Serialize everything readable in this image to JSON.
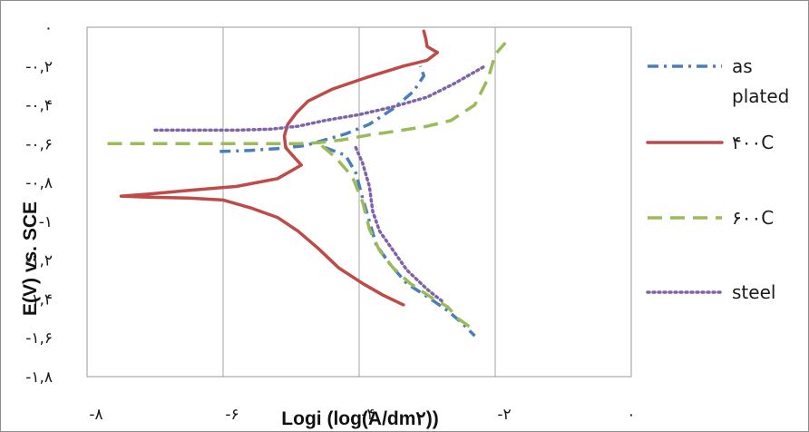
{
  "chart_data": {
    "type": "line",
    "title": "",
    "xlabel": "Logi (log(A/dm۲))",
    "ylabel": "E(V) vs. SCE",
    "xlim": [
      -8,
      0
    ],
    "ylim": [
      -1.8,
      0
    ],
    "grid": "vertical",
    "legend_position": "right",
    "x_tick_labels": [
      "-۸",
      "-۶",
      "-۴",
      "-۲",
      "۰"
    ],
    "x_tick_values": [
      -8,
      -6,
      -4,
      -2,
      0
    ],
    "y_tick_labels": [
      "۰",
      "-۰,۲",
      "-۰,۴",
      "-۰,۶",
      "-۰,۸",
      "-۱",
      "-۱,۲",
      "-۱,۴",
      "-۱,۶",
      "-۱,۸"
    ],
    "y_tick_values": [
      0,
      -0.2,
      -0.4,
      -0.6,
      -0.8,
      -1.0,
      -1.2,
      -1.4,
      -1.6,
      -1.8
    ],
    "series": [
      {
        "name": "as plated",
        "color": "#4a7ebb",
        "dash": "dashdot",
        "points": [
          [
            -6.05,
            -0.64
          ],
          [
            -5.6,
            -0.635
          ],
          [
            -5.2,
            -0.625
          ],
          [
            -4.8,
            -0.61
          ],
          [
            -4.5,
            -0.58
          ],
          [
            -4.2,
            -0.55
          ],
          [
            -3.85,
            -0.5
          ],
          [
            -3.5,
            -0.42
          ],
          [
            -3.2,
            -0.33
          ],
          [
            -3.05,
            -0.25
          ],
          [
            -3.1,
            -0.2
          ],
          [
            -4.5,
            -0.62
          ],
          [
            -4.2,
            -0.66
          ],
          [
            -4.05,
            -0.75
          ],
          [
            -3.95,
            -0.88
          ],
          [
            -3.85,
            -1.0
          ],
          [
            -3.75,
            -1.12
          ],
          [
            -3.55,
            -1.22
          ],
          [
            -3.3,
            -1.32
          ],
          [
            -2.95,
            -1.4
          ],
          [
            -2.7,
            -1.46
          ],
          [
            -2.5,
            -1.52
          ],
          [
            -2.3,
            -1.59
          ]
        ]
      },
      {
        "name": "۴۰۰C",
        "color": "#be4b48",
        "dash": "solid",
        "points": [
          [
            -3.05,
            -0.02
          ],
          [
            -3.02,
            -0.06
          ],
          [
            -3.0,
            -0.1
          ],
          [
            -2.85,
            -0.13
          ],
          [
            -3.0,
            -0.17
          ],
          [
            -3.35,
            -0.2
          ],
          [
            -3.9,
            -0.26
          ],
          [
            -4.4,
            -0.32
          ],
          [
            -4.75,
            -0.38
          ],
          [
            -4.92,
            -0.44
          ],
          [
            -5.05,
            -0.5
          ],
          [
            -5.1,
            -0.56
          ],
          [
            -5.08,
            -0.62
          ],
          [
            -4.98,
            -0.66
          ],
          [
            -4.85,
            -0.71
          ],
          [
            -5.2,
            -0.78
          ],
          [
            -5.8,
            -0.82
          ],
          [
            -6.5,
            -0.84
          ],
          [
            -7.1,
            -0.86
          ],
          [
            -7.5,
            -0.87
          ],
          [
            -7.1,
            -0.875
          ],
          [
            -6.5,
            -0.88
          ],
          [
            -6.0,
            -0.89
          ],
          [
            -5.6,
            -0.93
          ],
          [
            -5.2,
            -0.98
          ],
          [
            -4.9,
            -1.05
          ],
          [
            -4.6,
            -1.14
          ],
          [
            -4.3,
            -1.24
          ],
          [
            -3.95,
            -1.32
          ],
          [
            -3.65,
            -1.38
          ],
          [
            -3.35,
            -1.43
          ]
        ]
      },
      {
        "name": "۶۰۰C",
        "color": "#9bbb59",
        "dash": "dash",
        "points": [
          [
            -7.7,
            -0.6
          ],
          [
            -7.2,
            -0.6
          ],
          [
            -6.5,
            -0.6
          ],
          [
            -5.9,
            -0.6
          ],
          [
            -5.3,
            -0.6
          ],
          [
            -4.9,
            -0.6
          ],
          [
            -4.6,
            -0.595
          ],
          [
            -4.25,
            -0.58
          ],
          [
            -3.85,
            -0.555
          ],
          [
            -3.45,
            -0.535
          ],
          [
            -3.0,
            -0.51
          ],
          [
            -2.65,
            -0.48
          ],
          [
            -2.3,
            -0.4
          ],
          [
            -2.1,
            -0.26
          ],
          [
            -2.0,
            -0.14
          ],
          [
            -1.85,
            -0.08
          ],
          [
            -4.55,
            -0.61
          ],
          [
            -4.35,
            -0.67
          ],
          [
            -4.1,
            -0.77
          ],
          [
            -3.95,
            -0.9
          ],
          [
            -3.85,
            -1.04
          ],
          [
            -3.7,
            -1.15
          ],
          [
            -3.5,
            -1.24
          ],
          [
            -3.25,
            -1.32
          ],
          [
            -2.95,
            -1.39
          ],
          [
            -2.7,
            -1.44
          ],
          [
            -2.55,
            -1.5
          ],
          [
            -2.35,
            -1.55
          ]
        ]
      },
      {
        "name": "steel",
        "color": "#7f63a8",
        "dash": "dot",
        "points": [
          [
            -7.0,
            -0.53
          ],
          [
            -6.4,
            -0.53
          ],
          [
            -5.8,
            -0.53
          ],
          [
            -5.3,
            -0.525
          ],
          [
            -4.9,
            -0.51
          ],
          [
            -4.5,
            -0.48
          ],
          [
            -4.0,
            -0.45
          ],
          [
            -3.5,
            -0.41
          ],
          [
            -3.0,
            -0.36
          ],
          [
            -2.6,
            -0.29
          ],
          [
            -2.15,
            -0.2
          ],
          [
            -4.05,
            -0.62
          ],
          [
            -3.95,
            -0.7
          ],
          [
            -3.85,
            -0.82
          ],
          [
            -3.8,
            -0.95
          ],
          [
            -3.7,
            -1.05
          ],
          [
            -3.5,
            -1.15
          ],
          [
            -3.3,
            -1.25
          ],
          [
            -3.0,
            -1.35
          ],
          [
            -2.75,
            -1.42
          ]
        ]
      }
    ]
  }
}
